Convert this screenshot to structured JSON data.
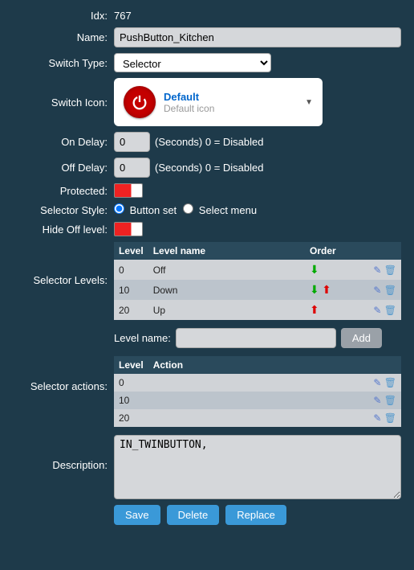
{
  "idx": {
    "label": "Idx:",
    "value": "767"
  },
  "name": {
    "label": "Name:",
    "value": "PushButton_Kitchen"
  },
  "switchType": {
    "label": "Switch Type:",
    "options": [
      "Selector"
    ],
    "selected": "Selector"
  },
  "switchIcon": {
    "label": "Switch Icon:",
    "title": "Default",
    "subtitle": "Default icon",
    "iconName": "power-icon",
    "iconColor": "#c40000"
  },
  "onDelay": {
    "label": "On Delay:",
    "value": "0",
    "suffix": "(Seconds) 0 = Disabled"
  },
  "offDelay": {
    "label": "Off Delay:",
    "value": "0",
    "suffix": "(Seconds) 0 = Disabled"
  },
  "protected": {
    "label": "Protected:",
    "value": false,
    "toggleColors": {
      "on": "#ee2222",
      "off": "#ffffff"
    }
  },
  "selectorStyle": {
    "label": "Selector Style:",
    "options": [
      {
        "label": "Button set",
        "checked": true
      },
      {
        "label": "Select menu",
        "checked": false
      }
    ]
  },
  "hideOff": {
    "label": "Hide Off level:",
    "value": false
  },
  "selectorLevels": {
    "label": "Selector Levels:",
    "columns": [
      "Level",
      "Level name",
      "Order",
      ""
    ],
    "rows": [
      {
        "level": "0",
        "name": "Off",
        "hasDown": true,
        "hasUp": false
      },
      {
        "level": "10",
        "name": "Down",
        "hasDown": true,
        "hasUp": true
      },
      {
        "level": "20",
        "name": "Up",
        "hasDown": false,
        "hasUp": true
      }
    ],
    "addLabel": "Level name:",
    "addValue": "",
    "addButton": "Add"
  },
  "selectorActions": {
    "label": "Selector actions:",
    "columns": [
      "Level",
      "Action",
      ""
    ],
    "rows": [
      {
        "level": "0",
        "action": ""
      },
      {
        "level": "10",
        "action": ""
      },
      {
        "level": "20",
        "action": ""
      }
    ]
  },
  "description": {
    "label": "Description:",
    "value": "IN_TWINBUTTON,"
  },
  "buttons": {
    "save": "Save",
    "delete": "Delete",
    "replace": "Replace"
  },
  "colors": {
    "background": "#1e3a4a",
    "tableHeader": "#2a4a5c",
    "rowOdd": "#d0d3d7",
    "rowEven": "#bcc4cc",
    "buttonPrimary": "#3a99d8",
    "buttonSecondary": "#9aa1a8"
  }
}
